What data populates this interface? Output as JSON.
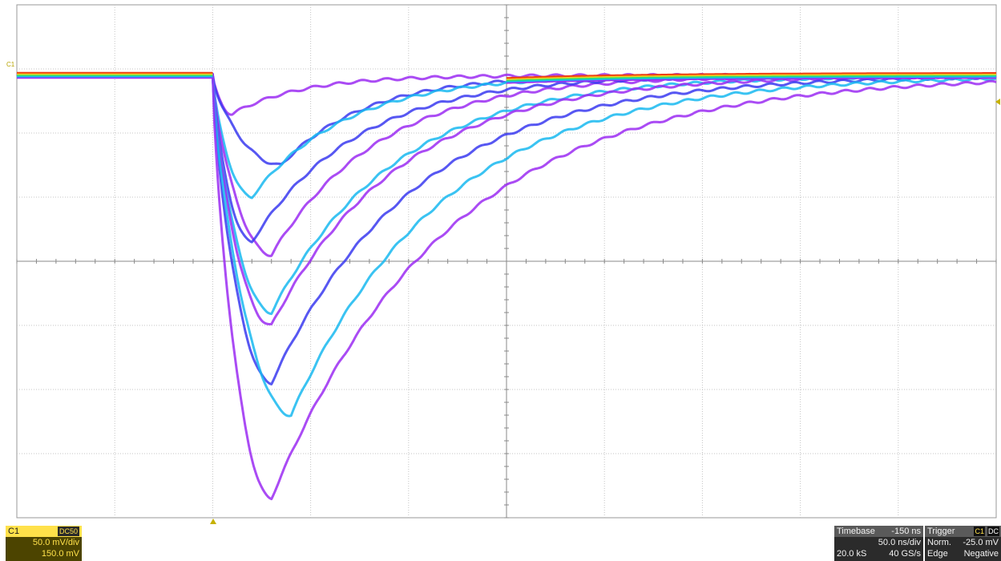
{
  "channel": {
    "badge": "C1",
    "label": "C1",
    "coupling": "DC50",
    "vertical_scale": "50.0 mV/div",
    "offset": "150.0 mV",
    "color": "#ffe14a"
  },
  "timebase": {
    "title": "Timebase",
    "delay": "-150 ns",
    "scale": "50.0 ns/div",
    "samples": "20.0 kS",
    "sample_rate": "40 GS/s"
  },
  "trigger": {
    "title": "Trigger",
    "source": "C1",
    "coupling": "DC",
    "mode": "Norm.",
    "level": "-25.0 mV",
    "type": "Edge",
    "slope": "Negative"
  },
  "chart_data": {
    "type": "line",
    "display": "persistence",
    "grid": true,
    "divisions": {
      "x": 10,
      "y": 8
    },
    "xlim_divisions": [
      0,
      10
    ],
    "ylim_divisions": [
      -4,
      4
    ],
    "persistence_colors": [
      "#9b2cf2",
      "#3a3af0",
      "#18b8f0",
      "#30e070",
      "#f0d020",
      "#f04010"
    ],
    "series": [
      {
        "name": "",
        "baseline": 2.9,
        "peak": 2.3,
        "peak_time": 2.2
      },
      {
        "name": "",
        "baseline": 2.9,
        "peak": 1.5,
        "peak_time": 2.7
      },
      {
        "name": "",
        "baseline": 2.9,
        "peak": 1.0,
        "peak_time": 2.4
      },
      {
        "name": "",
        "baseline": 2.9,
        "peak": 0.1,
        "peak_time": 2.6
      },
      {
        "name": "",
        "baseline": 2.9,
        "peak": 0.3,
        "peak_time": 2.4
      },
      {
        "name": "",
        "baseline": 2.9,
        "peak": -0.8,
        "peak_time": 2.6
      },
      {
        "name": "",
        "baseline": 2.9,
        "peak": -1.0,
        "peak_time": 2.6
      },
      {
        "name": "",
        "baseline": 2.9,
        "peak": -1.9,
        "peak_time": 2.6
      },
      {
        "name": "",
        "baseline": 2.9,
        "peak": -2.4,
        "peak_time": 2.8
      },
      {
        "name": "",
        "baseline": 2.9,
        "peak": -3.7,
        "peak_time": 2.6
      }
    ]
  }
}
